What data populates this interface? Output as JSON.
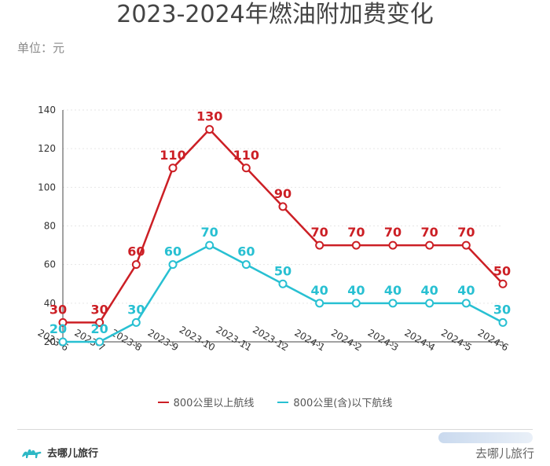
{
  "title": "2023-2024年燃油附加费变化",
  "unit_label": "单位：元",
  "colors": {
    "series_long": "#cc1f25",
    "series_short": "#28c0d2",
    "axis": "#444444",
    "grid": "#e6e6e6"
  },
  "chart_data": {
    "type": "line",
    "title": "2023-2024年燃油附加费变化",
    "ylabel": "单位：元",
    "x": [
      "2023-6",
      "2023-7",
      "2023-8",
      "2023-9",
      "2023-10",
      "2023-11",
      "2023-12",
      "2024-1",
      "2024-2",
      "2024-3",
      "2024-4",
      "2024-5",
      "2024-6"
    ],
    "ylim": [
      20,
      140
    ],
    "yticks": [
      20,
      40,
      60,
      80,
      100,
      120,
      140
    ],
    "grid": "horizontal dotted",
    "legend_placement": "bottom-center",
    "series": [
      {
        "name": "800公里以上航线",
        "color": "#cc1f25",
        "values": [
          30,
          30,
          60,
          110,
          130,
          110,
          90,
          70,
          70,
          70,
          70,
          70,
          50
        ]
      },
      {
        "name": "800公里(含)以下航线",
        "color": "#28c0d2",
        "values": [
          20,
          20,
          30,
          60,
          70,
          60,
          50,
          40,
          40,
          40,
          40,
          40,
          30
        ]
      }
    ]
  },
  "footer": {
    "brand_left": "去哪儿旅行",
    "brand_right": "去哪儿旅行",
    "logo_icon": "camel-icon"
  }
}
